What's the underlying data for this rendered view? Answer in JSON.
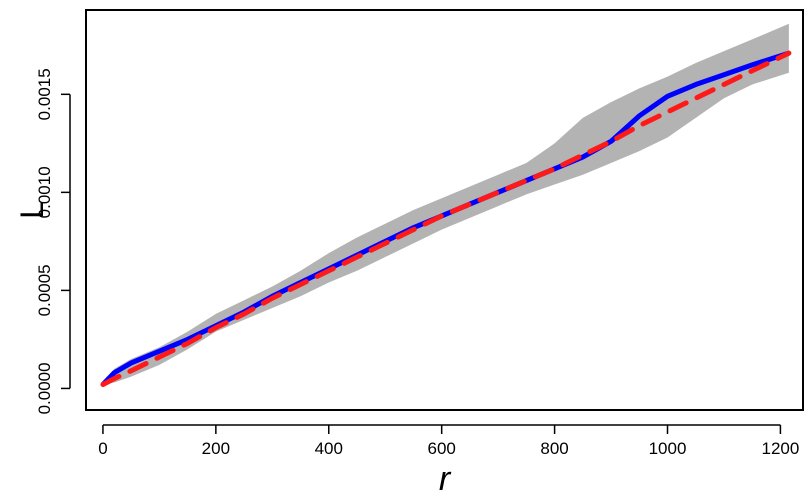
{
  "chart_data": {
    "type": "line",
    "xlabel": "r",
    "ylabel": "L",
    "xlim": [
      -30,
      1240
    ],
    "ylim": [
      -0.00011,
      0.00193
    ],
    "x_ticks": [
      0,
      200,
      400,
      600,
      800,
      1000,
      1200
    ],
    "x_tick_labels": [
      "0",
      "200",
      "400",
      "600",
      "800",
      "1000",
      "1200"
    ],
    "y_ticks": [
      0.0,
      0.0005,
      0.001,
      0.0015
    ],
    "y_tick_labels": [
      "0.0000",
      "0.0005",
      "0.0010",
      "0.0015"
    ],
    "grid": false,
    "legend": "none",
    "series": [
      {
        "style": "solid",
        "color": "#0000ff",
        "x": [
          0,
          20,
          50,
          100,
          150,
          200,
          250,
          300,
          350,
          400,
          450,
          500,
          550,
          600,
          650,
          700,
          750,
          800,
          850,
          900,
          950,
          1000,
          1050,
          1100,
          1150,
          1215
        ],
        "y": [
          2e-05,
          8e-05,
          0.00013,
          0.00019,
          0.00025,
          0.00032,
          0.00039,
          0.00047,
          0.00054,
          0.00061,
          0.00068,
          0.00075,
          0.00082,
          0.00088,
          0.00094,
          0.001,
          0.00106,
          0.00112,
          0.00118,
          0.00126,
          0.00139,
          0.00149,
          0.00155,
          0.0016,
          0.00165,
          0.00171
        ]
      },
      {
        "style": "dashed",
        "color": "#ff1a1a",
        "x": [
          0,
          20,
          50,
          100,
          150,
          200,
          250,
          300,
          350,
          400,
          450,
          500,
          550,
          600,
          650,
          700,
          750,
          800,
          850,
          900,
          950,
          1000,
          1050,
          1100,
          1150,
          1215
        ],
        "y": [
          2e-05,
          5e-05,
          9e-05,
          0.00016,
          0.00023,
          0.00031,
          0.00038,
          0.00046,
          0.00053,
          0.0006,
          0.00067,
          0.00074,
          0.00081,
          0.00088,
          0.00094,
          0.001,
          0.00106,
          0.00112,
          0.00119,
          0.00126,
          0.00134,
          0.00141,
          0.00148,
          0.00155,
          0.00162,
          0.00171
        ]
      }
    ],
    "band": {
      "color": "#b3b3b3",
      "x": [
        0,
        20,
        50,
        100,
        150,
        200,
        250,
        300,
        350,
        400,
        450,
        500,
        550,
        600,
        650,
        700,
        750,
        800,
        850,
        900,
        950,
        1000,
        1050,
        1100,
        1150,
        1215
      ],
      "lower": [
        2e-05,
        3e-05,
        6e-05,
        0.00012,
        0.0002,
        0.00029,
        0.00035,
        0.00041,
        0.00047,
        0.00054,
        0.0006,
        0.00067,
        0.00074,
        0.00081,
        0.00087,
        0.00093,
        0.00099,
        0.00104,
        0.00109,
        0.00115,
        0.00121,
        0.00128,
        0.00138,
        0.00148,
        0.00155,
        0.00161
      ],
      "upper": [
        2e-05,
        0.0001,
        0.00015,
        0.00021,
        0.00029,
        0.00038,
        0.00045,
        0.00052,
        0.0006,
        0.00069,
        0.00077,
        0.00084,
        0.00091,
        0.00097,
        0.00103,
        0.00109,
        0.00115,
        0.00125,
        0.00138,
        0.00146,
        0.00153,
        0.00159,
        0.00166,
        0.00172,
        0.00178,
        0.00186
      ]
    }
  }
}
